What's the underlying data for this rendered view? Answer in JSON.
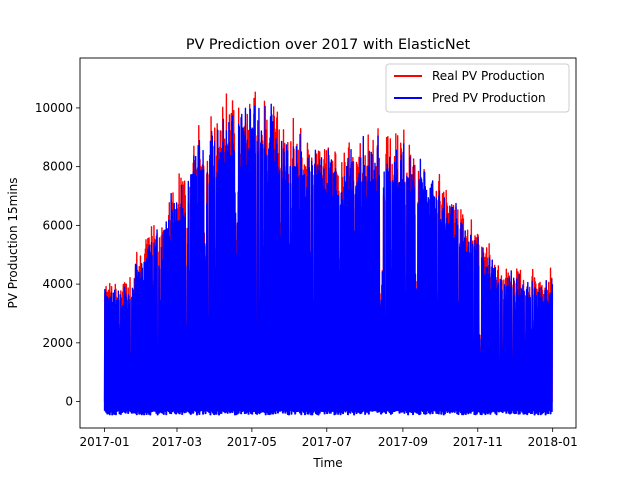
{
  "chart_data": {
    "type": "line",
    "title": "PV Prediction over 2017 with ElasticNet",
    "xlabel": "Time",
    "ylabel": "PV Production 15mins",
    "x_range": [
      "2017-01-01",
      "2018-01-01"
    ],
    "xlim": [
      "2016-12-12",
      "2018-01-20"
    ],
    "ylim": [
      -900,
      11700
    ],
    "x_ticks": [
      {
        "label": "2017-01",
        "date": "2017-01-01"
      },
      {
        "label": "2017-03",
        "date": "2017-03-01"
      },
      {
        "label": "2017-05",
        "date": "2017-05-01"
      },
      {
        "label": "2017-07",
        "date": "2017-07-01"
      },
      {
        "label": "2017-09",
        "date": "2017-09-01"
      },
      {
        "label": "2017-11",
        "date": "2017-11-01"
      },
      {
        "label": "2018-01",
        "date": "2018-01-01"
      }
    ],
    "y_ticks": [
      0,
      2000,
      4000,
      6000,
      8000,
      10000
    ],
    "y_tick_labels": [
      "0",
      "2000",
      "4000",
      "6000",
      "8000",
      "10000"
    ],
    "grid": false,
    "legend_position": "top-right",
    "series": [
      {
        "name": "Real PV Production",
        "color": "#ff0000",
        "monthly_peak": [
          {
            "month": "2017-01",
            "peak": 4400
          },
          {
            "month": "2017-02",
            "peak": 6700
          },
          {
            "month": "2017-03",
            "peak": 9450
          },
          {
            "month": "2017-04",
            "peak": 11000
          },
          {
            "month": "2017-05",
            "peak": 11100
          },
          {
            "month": "2017-06",
            "peak": 9200
          },
          {
            "month": "2017-07",
            "peak": 9250
          },
          {
            "month": "2017-08",
            "peak": 9800
          },
          {
            "month": "2017-09",
            "peak": 8900
          },
          {
            "month": "2017-10",
            "peak": 7000
          },
          {
            "month": "2017-11",
            "peak": 5200
          },
          {
            "month": "2017-12",
            "peak": 4600
          }
        ],
        "min_value": 0
      },
      {
        "name": "Pred PV Production",
        "color": "#0000ff",
        "monthly_peak": [
          {
            "month": "2017-01",
            "peak": 4200
          },
          {
            "month": "2017-02",
            "peak": 6500
          },
          {
            "month": "2017-03",
            "peak": 9300
          },
          {
            "month": "2017-04",
            "peak": 10700
          },
          {
            "month": "2017-05",
            "peak": 10800
          },
          {
            "month": "2017-06",
            "peak": 9100
          },
          {
            "month": "2017-07",
            "peak": 9100
          },
          {
            "month": "2017-08",
            "peak": 9500
          },
          {
            "month": "2017-09",
            "peak": 8700
          },
          {
            "month": "2017-10",
            "peak": 6800
          },
          {
            "month": "2017-11",
            "peak": 5000
          },
          {
            "month": "2017-12",
            "peak": 4400
          }
        ],
        "min_value": -300
      }
    ]
  }
}
